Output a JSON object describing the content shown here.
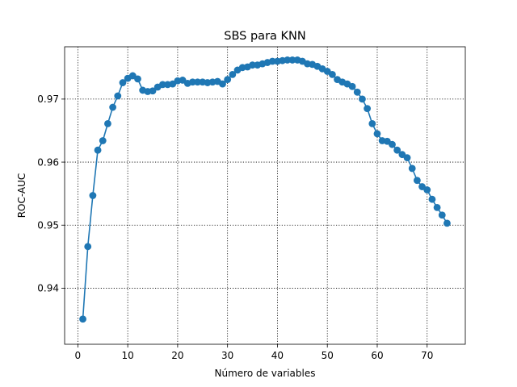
{
  "chart_data": {
    "type": "line",
    "title": "SBS para KNN",
    "xlabel": "Número de variables",
    "ylabel": "ROC-AUC",
    "xlim": [
      -2.65,
      77.65
    ],
    "ylim": [
      0.9311,
      0.9783
    ],
    "xticks": [
      0,
      10,
      20,
      30,
      40,
      50,
      60,
      70
    ],
    "yticks": [
      0.94,
      0.95,
      0.96,
      0.97
    ],
    "ytick_labels": [
      "0.94",
      "0.95",
      "0.96",
      "0.97"
    ],
    "grid": true,
    "markers": true,
    "color": "#1f77b4",
    "x": [
      1,
      2,
      3,
      4,
      5,
      6,
      7,
      8,
      9,
      10,
      11,
      12,
      13,
      14,
      15,
      16,
      17,
      18,
      19,
      20,
      21,
      22,
      23,
      24,
      25,
      26,
      27,
      28,
      29,
      30,
      31,
      32,
      33,
      34,
      35,
      36,
      37,
      38,
      39,
      40,
      41,
      42,
      43,
      44,
      45,
      46,
      47,
      48,
      49,
      50,
      51,
      52,
      53,
      54,
      55,
      56,
      57,
      58,
      59,
      60,
      61,
      62,
      63,
      64,
      65,
      66,
      67,
      68,
      69,
      70,
      71,
      72,
      73,
      74
    ],
    "y": [
      0.9351,
      0.9466,
      0.9547,
      0.9619,
      0.9634,
      0.9661,
      0.9687,
      0.9705,
      0.9726,
      0.9733,
      0.9737,
      0.9732,
      0.9714,
      0.9712,
      0.9713,
      0.9719,
      0.9723,
      0.9723,
      0.9724,
      0.9729,
      0.973,
      0.9725,
      0.9727,
      0.9727,
      0.9727,
      0.9726,
      0.9727,
      0.9728,
      0.9724,
      0.9731,
      0.9739,
      0.9746,
      0.975,
      0.9751,
      0.9754,
      0.9754,
      0.9756,
      0.9758,
      0.976,
      0.976,
      0.9761,
      0.9762,
      0.9762,
      0.9762,
      0.976,
      0.9756,
      0.9755,
      0.9752,
      0.9748,
      0.9744,
      0.9739,
      0.9731,
      0.9727,
      0.9724,
      0.972,
      0.9711,
      0.97,
      0.9685,
      0.9661,
      0.9645,
      0.9634,
      0.9633,
      0.9628,
      0.9619,
      0.9612,
      0.9607,
      0.959,
      0.9571,
      0.9561,
      0.9556,
      0.9541,
      0.9528,
      0.9516,
      0.9503
    ]
  }
}
